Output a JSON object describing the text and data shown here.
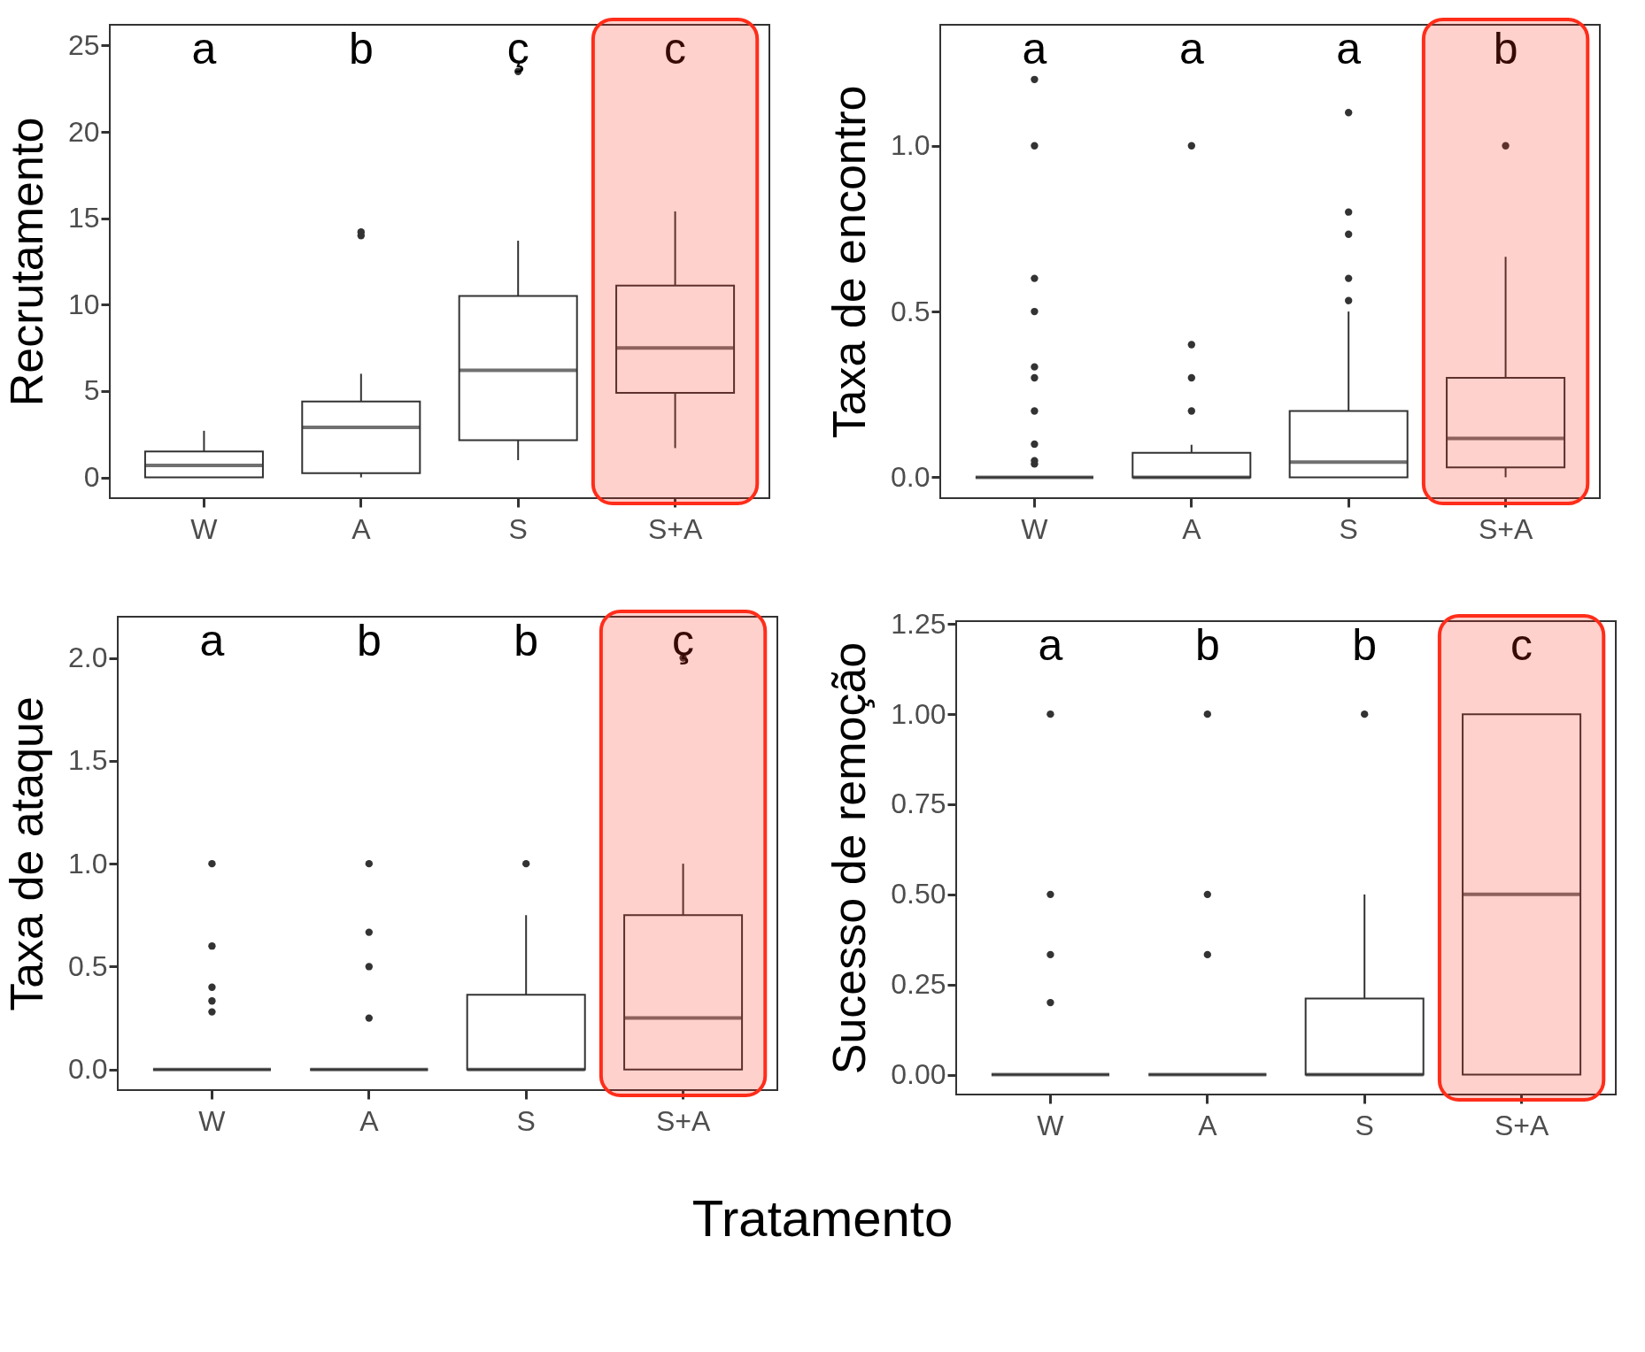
{
  "chart_data": [
    {
      "type": "box",
      "ylabel": "Recrutamento",
      "categories": [
        "W",
        "A",
        "S",
        "S+A"
      ],
      "ylim": [
        -1.2,
        26.2
      ],
      "yticks": [
        0,
        5,
        10,
        15,
        20,
        25
      ],
      "grid": false,
      "series": [
        {
          "color": "#333333",
          "boxes": [
            {
              "low": 0,
              "q1": 0,
              "median": 0.7,
              "q3": 1.5,
              "high": 2.7
            },
            {
              "low": 0,
              "q1": 0.25,
              "median": 2.9,
              "q3": 4.4,
              "high": 6.0,
              "outliers": [
                14,
                14.2
              ]
            },
            {
              "low": 1.0,
              "q1": 2.15,
              "median": 6.2,
              "q3": 10.5,
              "high": 13.7,
              "outliers": [
                23.5
              ]
            },
            {
              "low": 1.7,
              "q1": 4.9,
              "median": 7.5,
              "q3": 11.1,
              "high": 15.4
            }
          ]
        }
      ],
      "annotations": [
        "a",
        "b",
        "ç",
        "c"
      ],
      "bands": [
        {
          "axis": "x",
          "from": "S+A",
          "to": "S+A",
          "color": "#ff2d1a"
        }
      ]
    },
    {
      "type": "box",
      "ylabel": "Taxa de encontro",
      "categories": [
        "W",
        "A",
        "S",
        "S+A"
      ],
      "ylim": [
        -0.063,
        1.365
      ],
      "yticks": [
        {
          "value": 0,
          "label": "0.0"
        },
        {
          "value": 0.5,
          "label": "0.5"
        },
        {
          "value": 1,
          "label": "1.0"
        }
      ],
      "grid": false,
      "series": [
        {
          "color": "#333333",
          "boxes": [
            {
              "low": 0,
              "q1": 0,
              "median": 0,
              "q3": 0,
              "high": 0,
              "outliers": [
                0.04,
                0.05,
                0.1,
                0.2,
                0.3,
                0.333,
                0.5,
                0.6,
                1.0,
                1.2
              ]
            },
            {
              "low": 0,
              "q1": 0,
              "median": 0,
              "q3": 0.074,
              "high": 0.098,
              "outliers": [
                0.2,
                0.3,
                0.4,
                1.0
              ]
            },
            {
              "low": 0,
              "q1": 0,
              "median": 0.046,
              "q3": 0.2,
              "high": 0.5,
              "outliers": [
                0.533,
                0.6,
                0.733,
                0.8,
                1.1
              ]
            },
            {
              "low": 0,
              "q1": 0.03,
              "median": 0.117,
              "q3": 0.3,
              "high": 0.665,
              "outliers": [
                1.0
              ]
            }
          ]
        }
      ],
      "annotations": [
        "a",
        "a",
        "a",
        "b"
      ],
      "bands": [
        {
          "axis": "x",
          "from": "S+A",
          "to": "S+A",
          "color": "#ff2d1a"
        }
      ]
    },
    {
      "type": "box",
      "ylabel": "Taxa de ataque",
      "xlabel": "Tratamento",
      "categories": [
        "W",
        "A",
        "S",
        "S+A"
      ],
      "ylim": [
        -0.1,
        2.2
      ],
      "yticks": [
        {
          "value": 0,
          "label": "0.0"
        },
        {
          "value": 0.5,
          "label": "0.5"
        },
        {
          "value": 1,
          "label": "1.0"
        },
        {
          "value": 1.5,
          "label": "1.5"
        },
        {
          "value": 2,
          "label": "2.0"
        }
      ],
      "grid": false,
      "series": [
        {
          "color": "#333333",
          "boxes": [
            {
              "low": 0,
              "q1": 0,
              "median": 0,
              "q3": 0,
              "high": 0,
              "outliers": [
                0.28,
                0.333,
                0.4,
                0.6,
                1.0
              ]
            },
            {
              "low": 0,
              "q1": 0,
              "median": 0,
              "q3": 0,
              "high": 0,
              "outliers": [
                0.25,
                0.5,
                0.667,
                1.0
              ]
            },
            {
              "low": 0,
              "q1": 0,
              "median": 0,
              "q3": 0.363,
              "high": 0.75,
              "outliers": [
                1.0
              ]
            },
            {
              "low": 0,
              "q1": 0,
              "median": 0.25,
              "q3": 0.75,
              "high": 1.0,
              "outliers": [
                2.0
              ]
            }
          ]
        }
      ],
      "annotations": [
        "a",
        "b",
        "b",
        "ç"
      ],
      "bands": [
        {
          "axis": "x",
          "from": "S+A",
          "to": "S+A",
          "color": "#ff2d1a"
        }
      ]
    },
    {
      "type": "box",
      "ylabel": "Sucesso de remoção",
      "categories": [
        "W",
        "A",
        "S",
        "S+A"
      ],
      "ylim": [
        -0.055,
        1.258
      ],
      "yticks": [
        {
          "value": 0,
          "label": "0.00"
        },
        {
          "value": 0.25,
          "label": "0.25"
        },
        {
          "value": 0.5,
          "label": "0.50"
        },
        {
          "value": 0.75,
          "label": "0.75"
        },
        {
          "value": 1,
          "label": "1.00"
        },
        {
          "value": 1.25,
          "label": "1.25"
        }
      ],
      "grid": false,
      "series": [
        {
          "color": "#333333",
          "boxes": [
            {
              "low": 0,
              "q1": 0,
              "median": 0,
              "q3": 0,
              "high": 0,
              "outliers": [
                0.2,
                0.333,
                0.5,
                1.0
              ]
            },
            {
              "low": 0,
              "q1": 0,
              "median": 0,
              "q3": 0,
              "high": 0,
              "outliers": [
                0.333,
                0.5,
                1.0
              ]
            },
            {
              "low": 0,
              "q1": 0,
              "median": 0,
              "q3": 0.211,
              "high": 0.5,
              "outliers": [
                1.0
              ]
            },
            {
              "low": 0,
              "q1": 0,
              "median": 0.5,
              "q3": 1.0,
              "high": 1.0
            }
          ]
        }
      ],
      "annotations": [
        "a",
        "b",
        "b",
        "c"
      ],
      "bands": [
        {
          "axis": "x",
          "from": "S+A",
          "to": "S+A",
          "color": "#ff2d1a"
        }
      ]
    }
  ]
}
